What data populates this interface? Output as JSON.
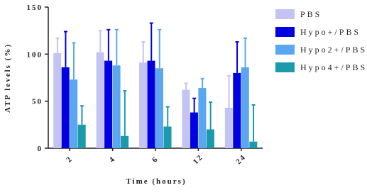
{
  "chart_data": {
    "type": "bar",
    "x_label": "Time (hours)",
    "y_label": "ATP levels (%)",
    "categories": [
      "2",
      "4",
      "6",
      "12",
      "24"
    ],
    "series": [
      {
        "name": "PBS",
        "color": "#c4c4f4",
        "values": [
          101,
          102,
          91,
          62,
          43
        ],
        "errors": [
          16,
          23,
          22,
          7,
          34
        ]
      },
      {
        "name": "Hypo+/PBS",
        "color": "#0000e0",
        "values": [
          86,
          93,
          93,
          38,
          80
        ],
        "errors": [
          38,
          33,
          40,
          15,
          33
        ]
      },
      {
        "name": "Hypo2+/PBS",
        "color": "#5ba6f0",
        "values": [
          73,
          88,
          85,
          64,
          86
        ],
        "errors": [
          39,
          38,
          41,
          10,
          31
        ]
      },
      {
        "name": "Hypo4+/PBS",
        "color": "#1a9aaa",
        "values": [
          25,
          13,
          23,
          20,
          7
        ],
        "errors": [
          20,
          48,
          21,
          29,
          39
        ]
      }
    ],
    "ylim": [
      0,
      150
    ],
    "yticks": [
      0,
      50,
      100,
      150
    ]
  }
}
